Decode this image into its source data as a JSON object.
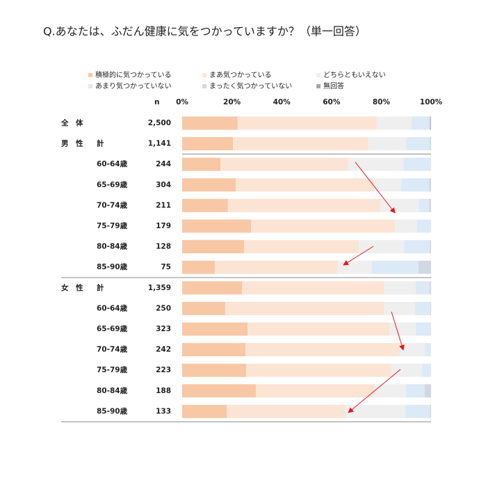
{
  "chart_data": {
    "type": "stacked-bar-horizontal",
    "title": "Q.あなたは、ふだん健康に気をつかっていますか？（単一回答）",
    "n_header": "n",
    "group_labels": [
      "全　体",
      "男　性",
      null,
      null,
      null,
      null,
      null,
      null,
      "女　性",
      null,
      null,
      null,
      null,
      null,
      null
    ],
    "categories": [
      null,
      "計",
      "60-64歳",
      "65-69歳",
      "70-74歳",
      "75-79歳",
      "80-84歳",
      "85-90歳",
      "計",
      "60-64歳",
      "65-69歳",
      "70-74歳",
      "75-79歳",
      "80-84歳",
      "85-90歳"
    ],
    "n": [
      "2,500",
      "1,141",
      "244",
      "304",
      "211",
      "179",
      "128",
      "75",
      "1,359",
      "250",
      "323",
      "242",
      "223",
      "188",
      "133"
    ],
    "series": [
      {
        "name": "積極的に気つかっている",
        "color": "#f8c7a5",
        "values": [
          22.3,
          20.4,
          15.4,
          21.5,
          18.4,
          27.7,
          24.9,
          13.1,
          24.0,
          17.3,
          26.3,
          25.4,
          25.7,
          29.6,
          17.9
        ]
      },
      {
        "name": "まあ気つかっている",
        "color": "#fce4d5",
        "values": [
          55.9,
          54.5,
          51.4,
          55.6,
          61.2,
          57.8,
          46.1,
          49.4,
          57.0,
          63.7,
          57.0,
          62.0,
          58.4,
          47.5,
          47.8
        ]
      },
      {
        "name": "どちらともいえない",
        "color": "#efefef",
        "values": [
          14.0,
          15.1,
          22.1,
          10.9,
          15.4,
          8.9,
          18.2,
          13.7,
          12.8,
          12.6,
          10.6,
          10.1,
          12.3,
          12.8,
          24.0
        ]
      },
      {
        "name": "あまり気つかっていない",
        "color": "#dce9f6",
        "values": [
          7.0,
          9.5,
          11.1,
          11.2,
          4.2,
          5.6,
          10.3,
          18.7,
          5.6,
          6.1,
          6.1,
          2.5,
          3.6,
          7.5,
          9.8
        ]
      },
      {
        "name": "まったく気つかっていない",
        "color": "#d2d8e3",
        "values": [
          0.6,
          0.5,
          0,
          0.8,
          0.8,
          0,
          0.5,
          5.1,
          0.6,
          0.3,
          0,
          0,
          0,
          2.6,
          0.5
        ]
      },
      {
        "name": "無回答",
        "color": "#a6a6a6",
        "values": [
          0.2,
          0,
          0,
          0,
          0,
          0,
          0,
          0,
          0,
          0,
          0,
          0,
          0,
          0,
          0
        ]
      }
    ],
    "xlim": [
      0,
      100
    ],
    "xticks": [
      {
        "value": 0,
        "label": "0%"
      },
      {
        "value": 20,
        "label": "20%"
      },
      {
        "value": 40,
        "label": "40%"
      },
      {
        "value": 60,
        "label": "60%"
      },
      {
        "value": 80,
        "label": "80%"
      },
      {
        "value": 100,
        "label": "100%"
      }
    ]
  }
}
